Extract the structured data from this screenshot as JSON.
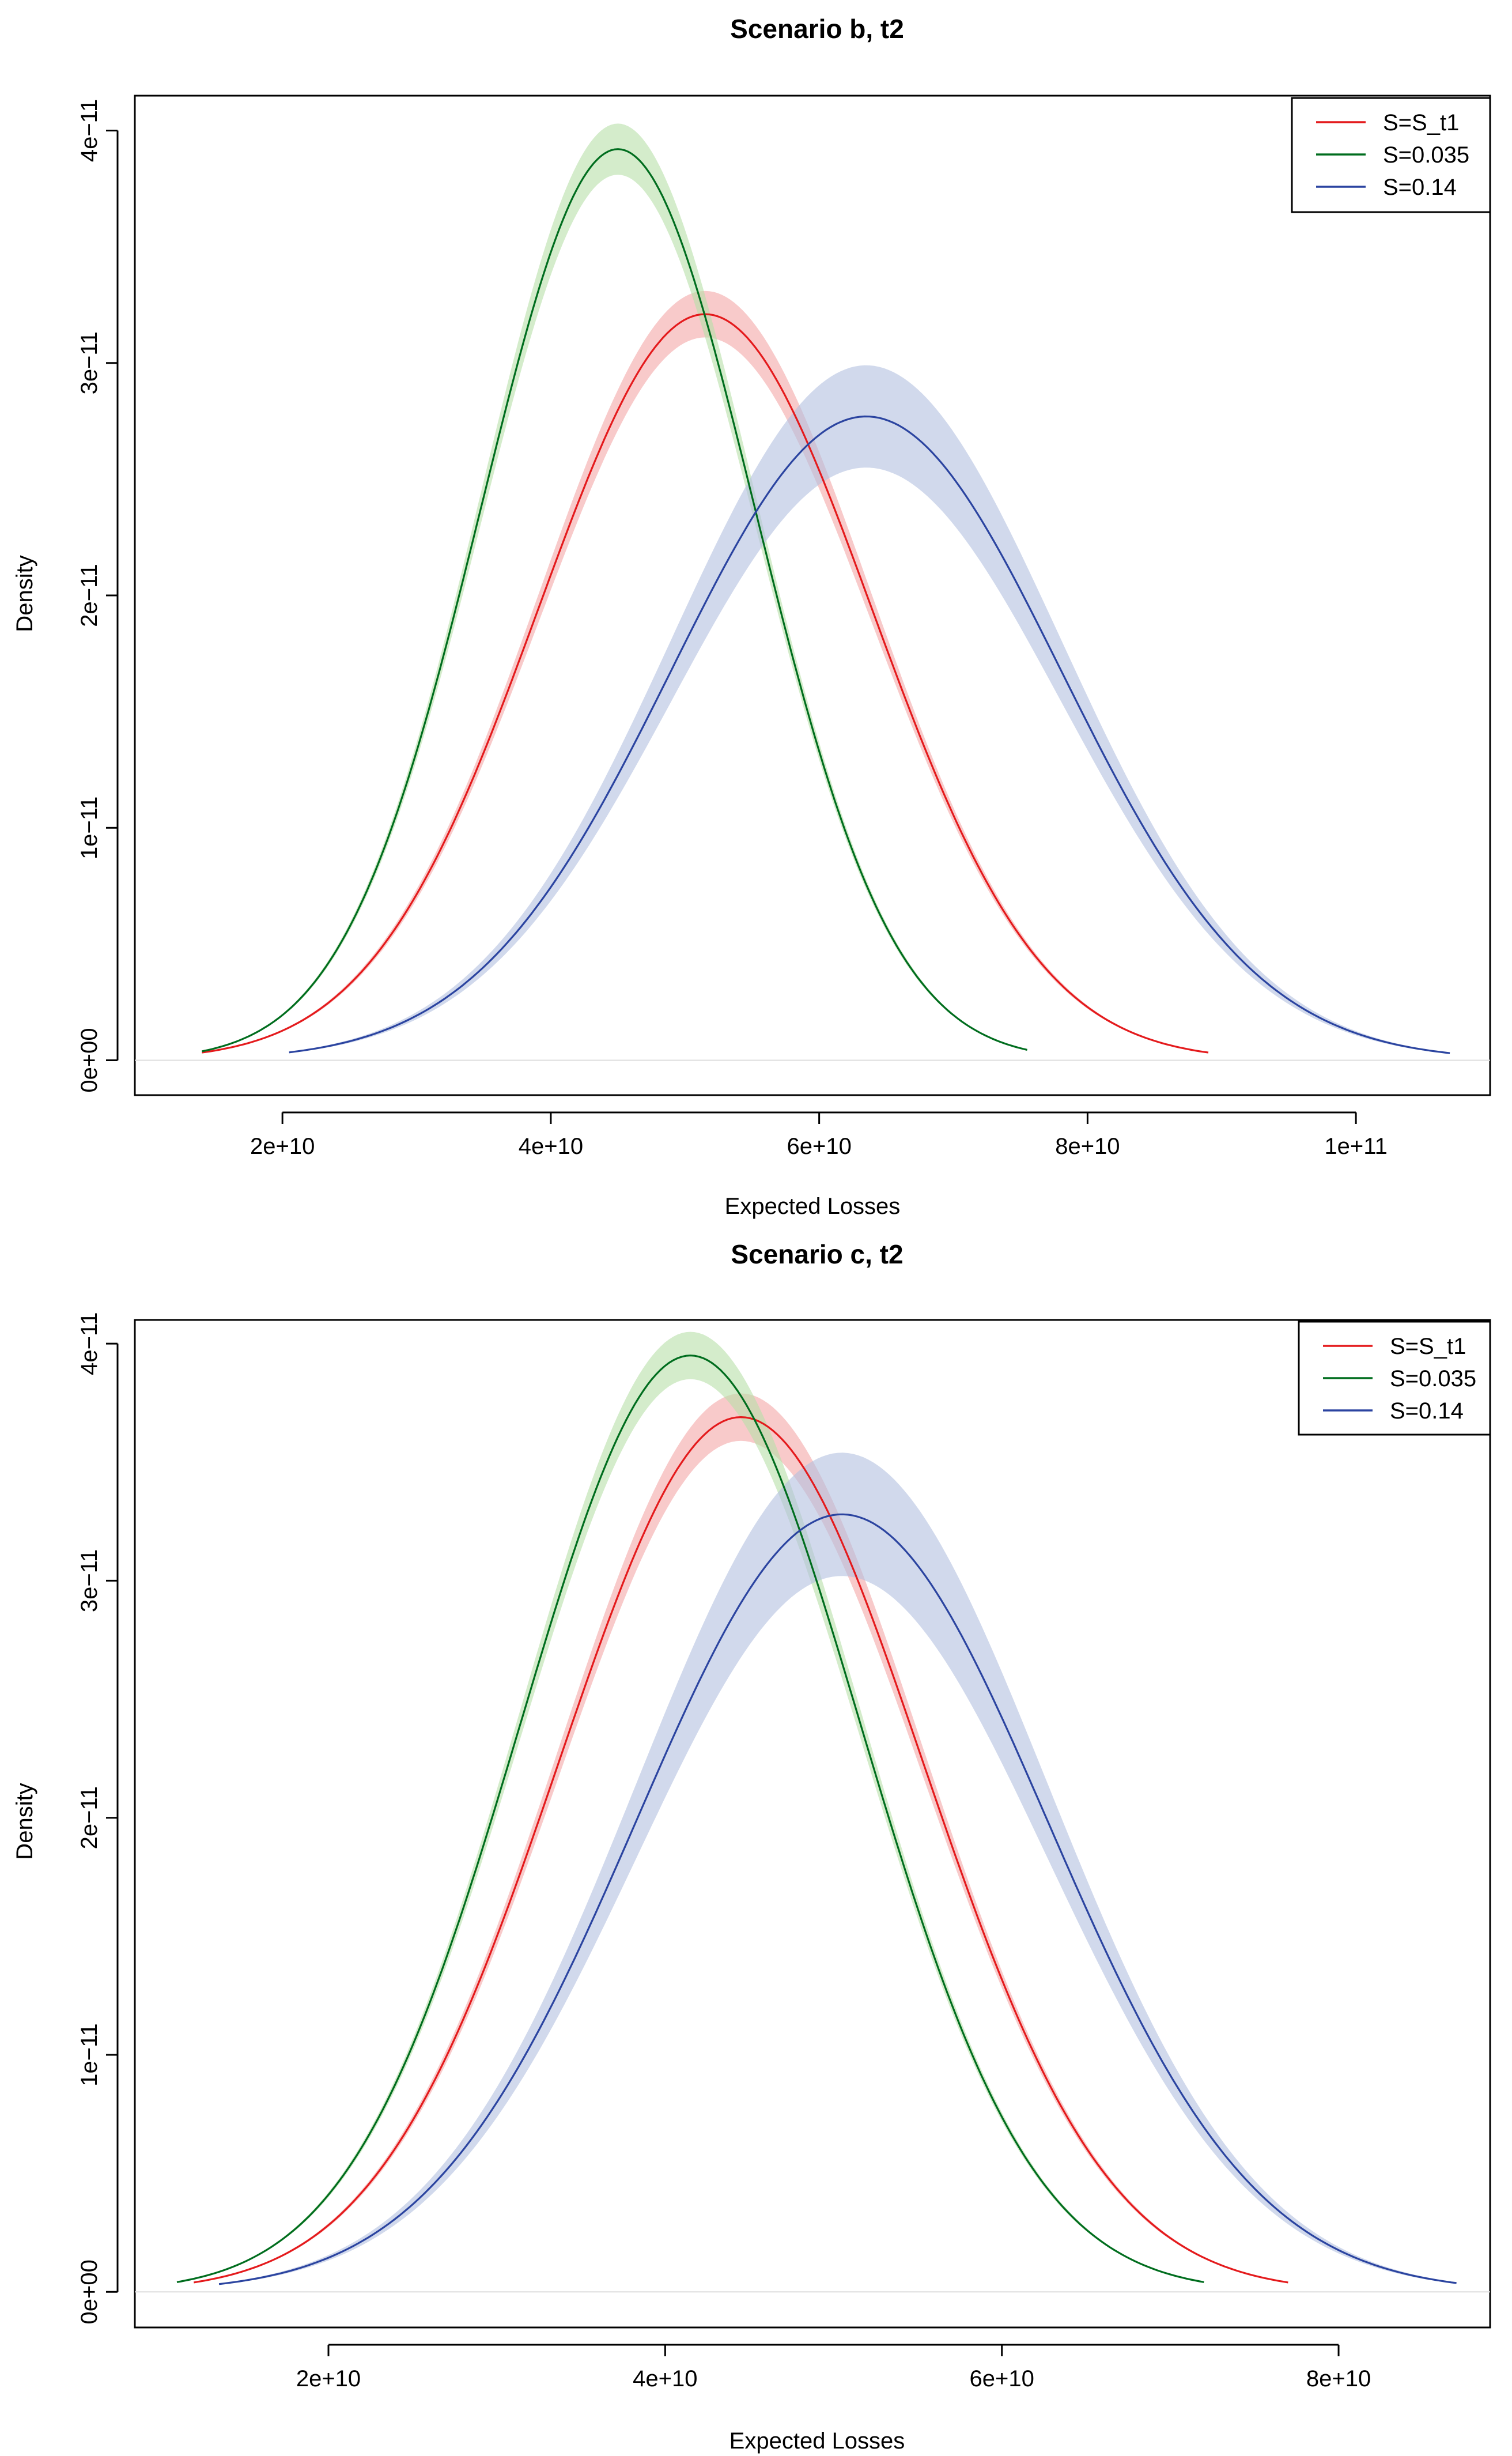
{
  "chart_data": [
    {
      "type": "line",
      "title": "Scenario b, t2",
      "xlabel": "Expected Losses",
      "ylabel": "Density",
      "xlim": [
        9000000000,
        110000000000
      ],
      "ylim": [
        -1.5e-12,
        4.15e-11
      ],
      "x_ticks": [
        20000000000,
        40000000000,
        60000000000,
        80000000000,
        100000000000
      ],
      "x_tick_labels": [
        "2e+10",
        "4e+10",
        "6e+10",
        "8e+10",
        "1e+11"
      ],
      "y_ticks": [
        0,
        1e-11,
        2e-11,
        3e-11,
        4e-11
      ],
      "y_tick_labels": [
        "0e+00",
        "1e−11",
        "2e−11",
        "3e−11",
        "4e−11"
      ],
      "legend_position": "top-right",
      "series": [
        {
          "name": "S=S_t1",
          "color": "#e41a1c",
          "band_color": "#f4a6a6",
          "mean": 51500000000,
          "sd": 12400000000,
          "peak": 3.21e-11,
          "band": 1e-12,
          "x_range": [
            14000000000,
            89000000000
          ]
        },
        {
          "name": "S=0.035",
          "color": "#006d1e",
          "band_color": "#b8e0a8",
          "mean": 45000000000,
          "sd": 10200000000,
          "peak": 3.92e-11,
          "band": 1.1e-12,
          "x_range": [
            14000000000,
            75500000000
          ]
        },
        {
          "name": "S=0.14",
          "color": "#2b44a0",
          "band_color": "#b3bfe0",
          "mean": 63500000000,
          "sd": 14500000000,
          "peak": 2.77e-11,
          "band": 2.2e-12,
          "x_range": [
            20500000000,
            107000000000
          ]
        }
      ]
    },
    {
      "type": "line",
      "title": "Scenario c, t2",
      "xlabel": "Expected Losses",
      "ylabel": "Density",
      "xlim": [
        8500000000,
        89000000000
      ],
      "ylim": [
        -1.5e-12,
        4.1e-11
      ],
      "x_ticks": [
        20000000000,
        40000000000,
        60000000000,
        80000000000
      ],
      "x_tick_labels": [
        "2e+10",
        "4e+10",
        "6e+10",
        "8e+10"
      ],
      "y_ticks": [
        0,
        1e-11,
        2e-11,
        3e-11,
        4e-11
      ],
      "y_tick_labels": [
        "0e+00",
        "1e−11",
        "2e−11",
        "3e−11",
        "4e−11"
      ],
      "legend_position": "top-right",
      "series": [
        {
          "name": "S=S_t1",
          "color": "#e41a1c",
          "band_color": "#f4a6a6",
          "mean": 44500000000,
          "sd": 10800000000,
          "peak": 3.69e-11,
          "band": 1e-12,
          "x_range": [
            12000000000,
            77000000000
          ]
        },
        {
          "name": "S=0.035",
          "color": "#006d1e",
          "band_color": "#b8e0a8",
          "mean": 41500000000,
          "sd": 10100000000,
          "peak": 3.95e-11,
          "band": 1e-12,
          "x_range": [
            11000000000,
            72000000000
          ]
        },
        {
          "name": "S=0.14",
          "color": "#2b44a0",
          "band_color": "#b3bfe0",
          "mean": 50500000000,
          "sd": 12200000000,
          "peak": 3.28e-11,
          "band": 2.6e-12,
          "x_range": [
            13500000000,
            87000000000
          ]
        }
      ]
    }
  ]
}
